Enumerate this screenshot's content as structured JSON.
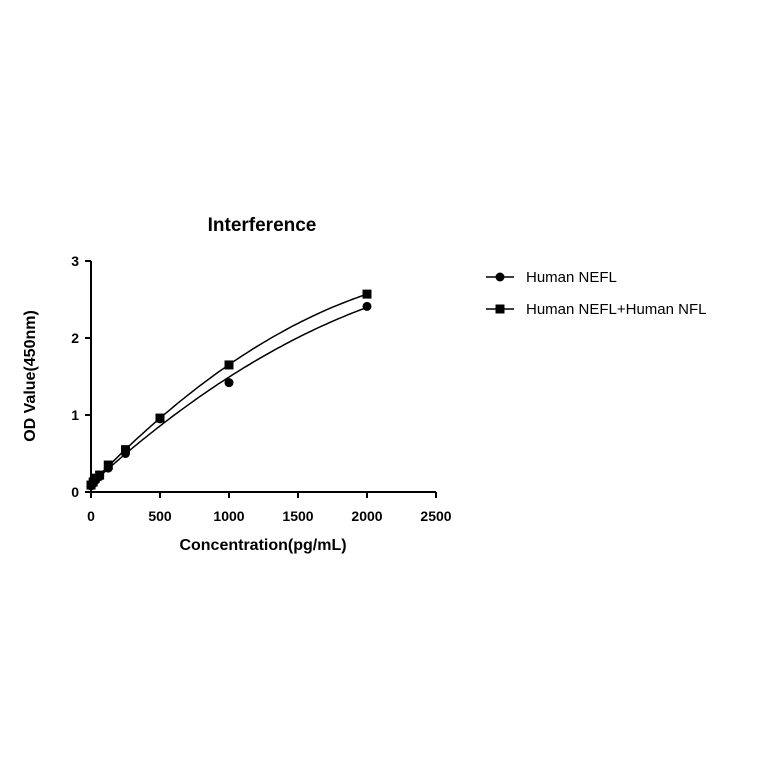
{
  "chart_data": {
    "type": "scatter",
    "title": "Interference",
    "xlabel": "Concentration(pg/mL)",
    "ylabel": "OD Value(450nm)",
    "xlim": [
      0,
      2500
    ],
    "ylim": [
      0,
      3
    ],
    "xticks": [
      "0",
      "500",
      "1000",
      "1500",
      "2000",
      "2500"
    ],
    "yticks": [
      "0",
      "1",
      "2",
      "3"
    ],
    "grid": false,
    "legend_position": "right",
    "series": [
      {
        "name": "Human NEFL",
        "marker": "circle",
        "x": [
          0,
          15.6,
          31.25,
          62.5,
          125,
          250,
          500,
          1000,
          2000
        ],
        "y": [
          0.08,
          0.11,
          0.15,
          0.2,
          0.31,
          0.5,
          0.95,
          1.42,
          2.41
        ],
        "fit": "curve"
      },
      {
        "name": "Human NEFL+Human NFL",
        "marker": "square",
        "x": [
          0,
          15.6,
          31.25,
          62.5,
          125,
          250,
          500,
          1000,
          2000
        ],
        "y": [
          0.09,
          0.13,
          0.18,
          0.22,
          0.35,
          0.55,
          0.96,
          1.65,
          2.57
        ],
        "fit": "curve"
      }
    ],
    "colors": {
      "axis": "#000000",
      "series": "#000000",
      "background": "#ffffff"
    }
  }
}
